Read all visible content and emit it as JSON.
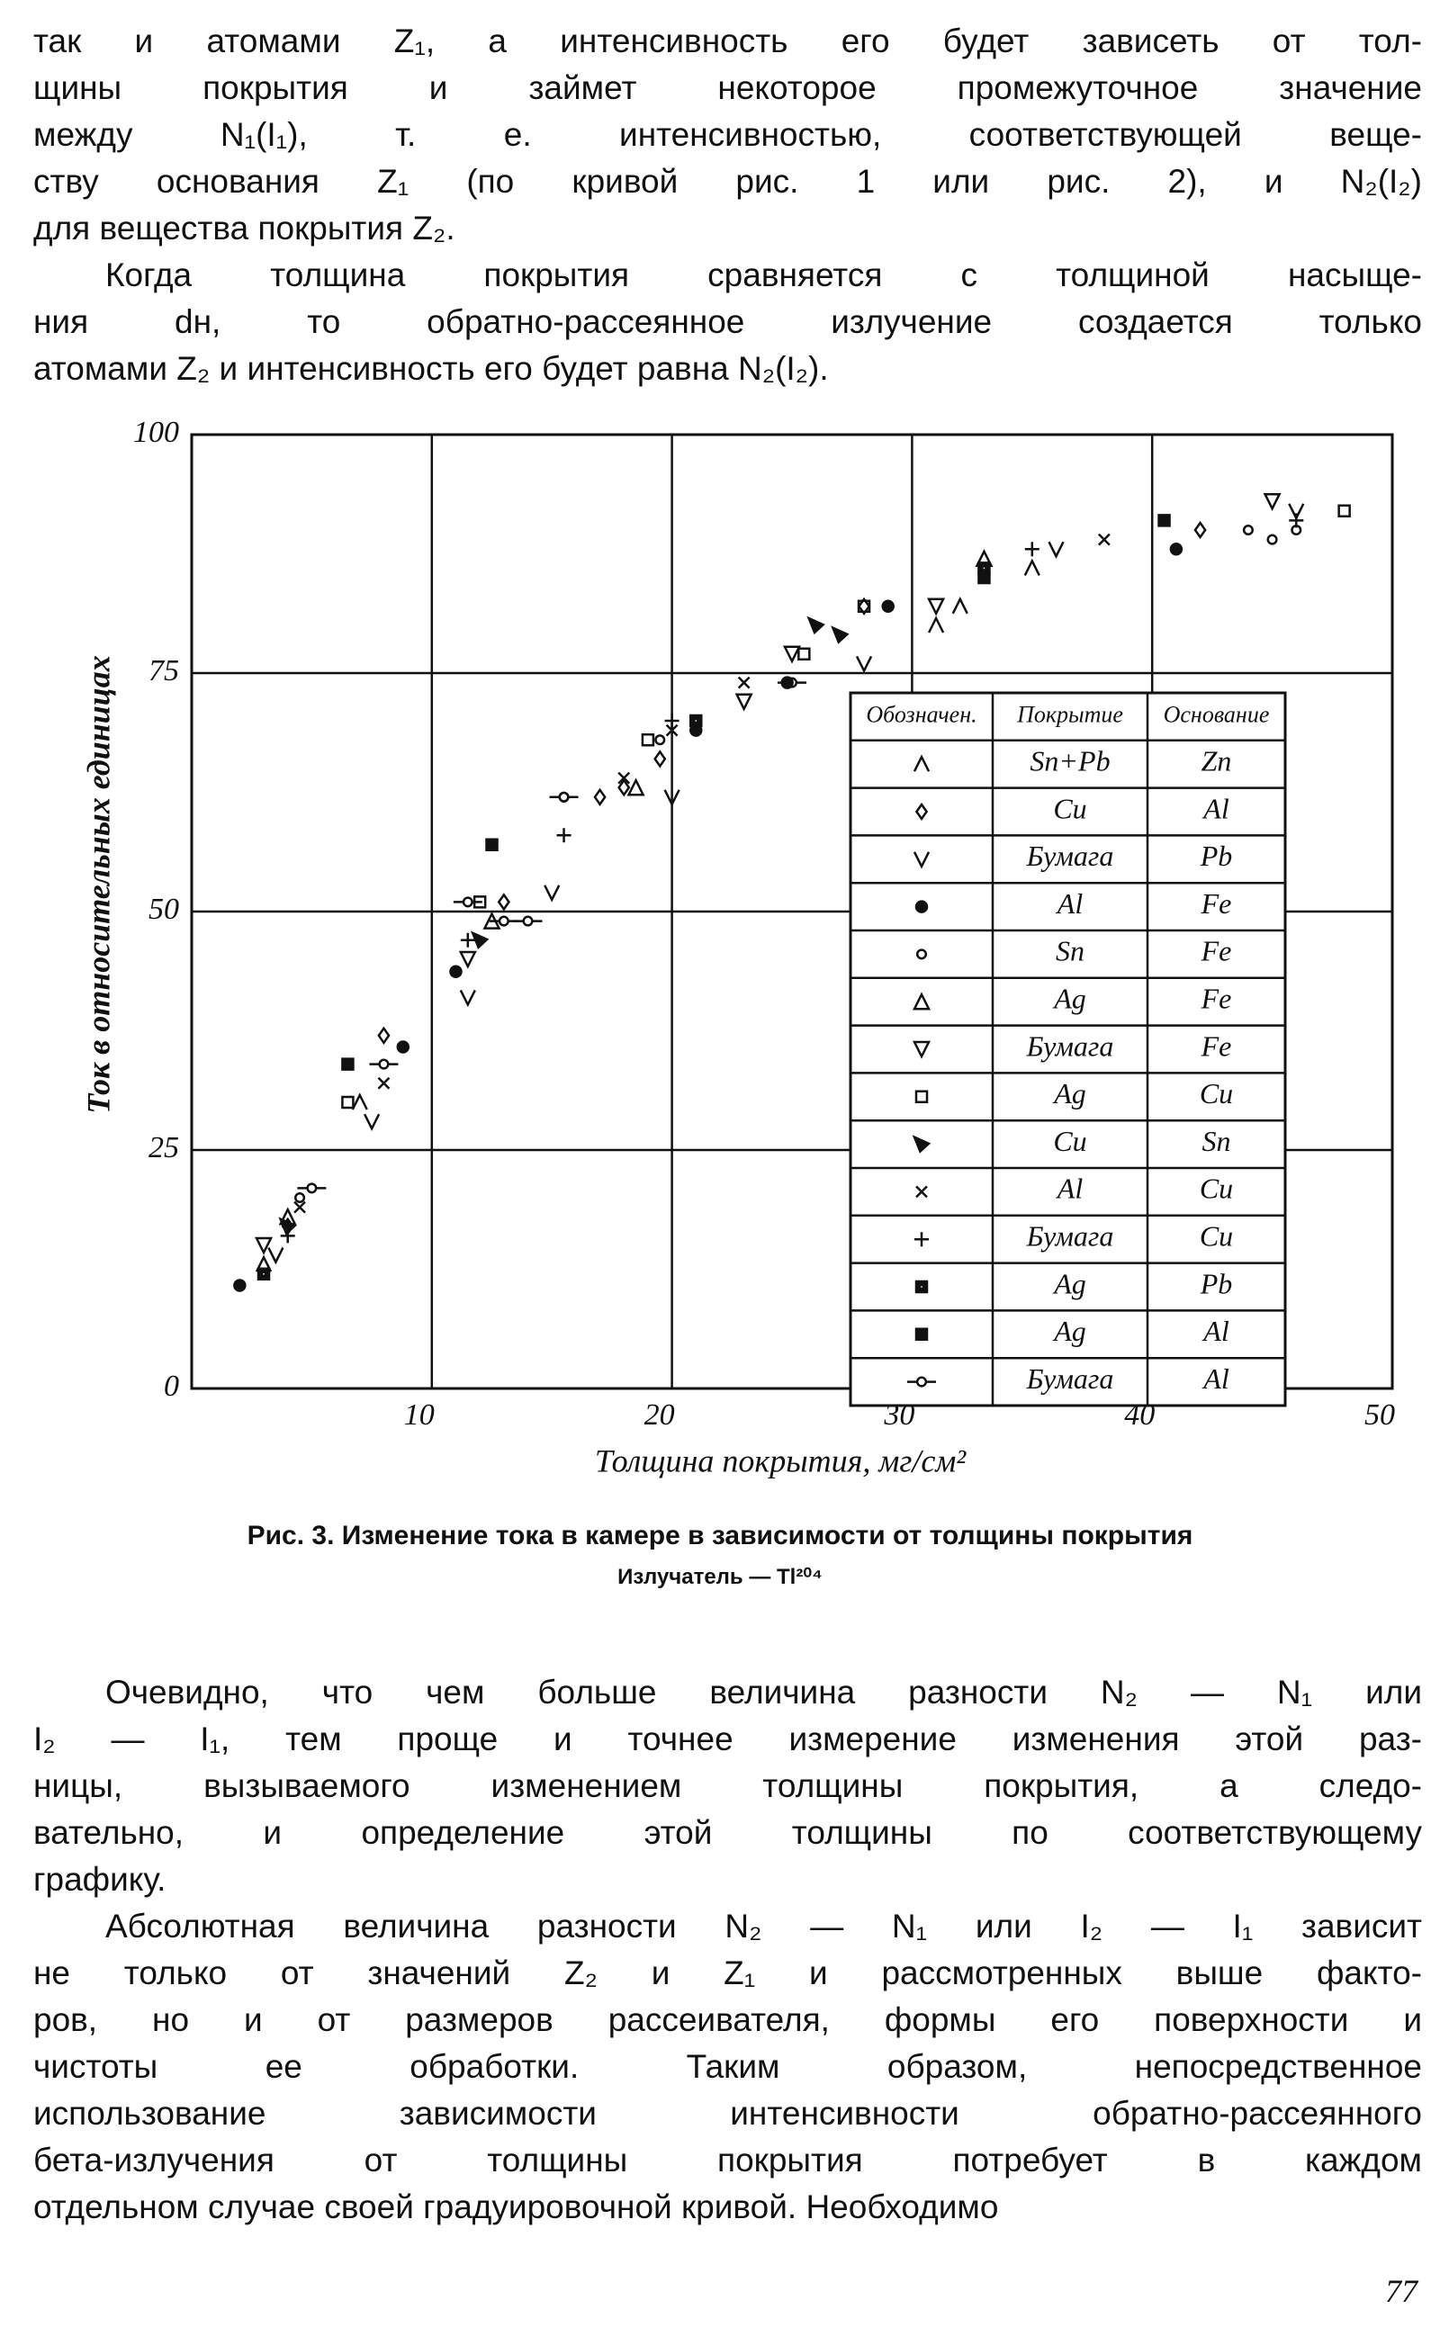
{
  "text_top": [
    [
      "так и атомами Z₁, а интенсивность его будет зависеть от тол-",
      "щины покрытия и займет некоторое промежуточное значение",
      "между N₁(I₁), т. е. интенсивностью, соответствующей веще-",
      "ству основания Z₁ (по кривой рис. 1 или рис. 2), и N₂(I₂)",
      "для вещества покрытия Z₂."
    ],
    [
      "Когда толщина покрытия сравняется с толщиной насыще-",
      "ния dн, то обратно-рассеянное излучение создается только",
      "атомами Z₂ и интенсивность его будет равна N₂(I₂)."
    ]
  ],
  "chart_data": {
    "type": "scatter",
    "xlabel": "Толщина покрытия, мг/см²",
    "ylabel": "Ток в относительных единицах",
    "xlim": [
      0,
      50
    ],
    "ylim": [
      0,
      100
    ],
    "xticks": [
      10,
      20,
      30,
      40,
      50
    ],
    "yticks": [
      0,
      25,
      50,
      75,
      100
    ],
    "grid": true,
    "legend_headers": [
      "Обозначен.",
      "Покрытие",
      "Основание"
    ],
    "series": [
      {
        "coating": "Sn+Pb",
        "base": "Zn",
        "marker": "caret",
        "color": "#111111",
        "x": [
          3,
          7,
          31,
          32,
          35
        ],
        "values": [
          13,
          30,
          80,
          82,
          86
        ]
      },
      {
        "coating": "Cu",
        "base": "Al",
        "marker": "diamond",
        "color": "#111111",
        "x": [
          4,
          8,
          13,
          17,
          18,
          19.5,
          28,
          42
        ],
        "values": [
          17,
          37,
          51,
          62,
          63,
          66,
          82,
          90
        ]
      },
      {
        "coating": "Бумага",
        "base": "Pb",
        "marker": "v",
        "color": "#111111",
        "x": [
          3.5,
          7.5,
          11.5,
          15,
          20,
          28,
          36,
          46
        ],
        "values": [
          14,
          28,
          41,
          52,
          62,
          76,
          88,
          92
        ]
      },
      {
        "coating": "Al",
        "base": "Fe",
        "marker": "dot",
        "color": "#111111",
        "x": [
          2,
          8.8,
          11,
          21,
          24.8,
          29,
          41
        ],
        "values": [
          10.8,
          35.8,
          43.7,
          69,
          74,
          82,
          88
        ]
      },
      {
        "coating": "Sn",
        "base": "Fe",
        "marker": "circle",
        "color": "#111111",
        "x": [
          4.5,
          15.5,
          19.5,
          44,
          45,
          46
        ],
        "values": [
          20,
          62,
          68,
          90,
          89,
          90
        ]
      },
      {
        "coating": "Ag",
        "base": "Fe",
        "marker": "triangle",
        "color": "#111111",
        "x": [
          4,
          12.5,
          18.5,
          33
        ],
        "values": [
          18,
          49,
          63,
          87
        ]
      },
      {
        "coating": "Бумага",
        "base": "Fe",
        "marker": "triangle-down",
        "color": "#111111",
        "x": [
          3,
          11.5,
          23,
          25,
          31,
          45
        ],
        "values": [
          15,
          45,
          72,
          77,
          82,
          93
        ]
      },
      {
        "coating": "Ag",
        "base": "Cu",
        "marker": "square",
        "color": "#111111",
        "x": [
          6.5,
          12,
          19,
          25.5,
          28,
          48
        ],
        "values": [
          30,
          51,
          68,
          77,
          82,
          92
        ]
      },
      {
        "coating": "Cu",
        "base": "Sn",
        "marker": "flag",
        "color": "#111111",
        "x": [
          4,
          12,
          26,
          27
        ],
        "values": [
          17,
          47,
          80,
          79
        ]
      },
      {
        "coating": "Al",
        "base": "Cu",
        "marker": "x",
        "color": "#111111",
        "x": [
          4.5,
          8,
          18,
          20,
          23,
          38
        ],
        "values": [
          19,
          32,
          64,
          69,
          74,
          89
        ]
      },
      {
        "coating": "Бумага",
        "base": "Cu",
        "marker": "plus",
        "color": "#111111",
        "x": [
          4,
          11.5,
          15.5,
          20,
          35,
          46
        ],
        "values": [
          16,
          47,
          58,
          70,
          88,
          91
        ]
      },
      {
        "coating": "Ag",
        "base": "Pb",
        "marker": "square-dot",
        "color": "#111111",
        "x": [
          3,
          21,
          33
        ],
        "values": [
          12,
          70,
          86
        ]
      },
      {
        "coating": "Ag",
        "base": "Al",
        "marker": "square-filled",
        "color": "#111111",
        "x": [
          6.5,
          12.5,
          33,
          40.5
        ],
        "values": [
          34,
          57,
          85,
          91
        ]
      },
      {
        "coating": "Бумага",
        "base": "Al",
        "marker": "circle-bar",
        "color": "#111111",
        "x": [
          5,
          8,
          11.5,
          13,
          14,
          15.5,
          25
        ],
        "values": [
          21,
          34,
          51,
          49,
          49,
          62,
          74
        ]
      }
    ]
  },
  "figure_caption": [
    "Рис. 3. Изменение тока в камере в зависимости от толщины покрытия",
    "Излучатель — Tl²⁰⁴"
  ],
  "text_bottom": [
    [
      "Очевидно, что чем больше величина разности N₂ — N₁ или",
      "I₂ — I₁, тем проще и точнее измерение изменения этой раз-",
      "ницы, вызываемого изменением толщины покрытия, а следо-",
      "вательно, и определение этой толщины по соответствующему",
      "графику."
    ],
    [
      "Абсолютная величина разности N₂ — N₁ или I₂ — I₁ зависит",
      "не только от значений Z₂ и Z₁ и рассмотренных выше факто-",
      "ров, но и от размеров рассеивателя, формы его поверхности и",
      "чистоты ее обработки. Таким образом, непосредственное",
      "использование зависимости интенсивности обратно-рассеянного",
      "бета-излучения от толщины покрытия потребует в каждом",
      "отдельном случае своей градуировочной кривой. Необходимо"
    ]
  ],
  "page_number": "77"
}
